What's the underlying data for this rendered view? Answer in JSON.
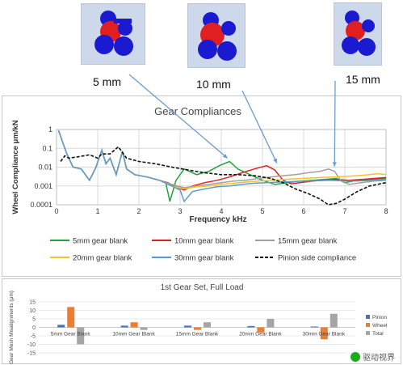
{
  "header": {
    "thumb_labels": [
      "5 mm",
      "10 mm",
      "15 mm"
    ]
  },
  "chart_data": [
    {
      "type": "line",
      "title": "Gear Compliances",
      "xlabel": "Frequency kHz",
      "ylabel": "Wheel Compliance μm/kN",
      "xlim": [
        0,
        8
      ],
      "ylim": [
        0.0001,
        1
      ],
      "yscale": "log",
      "x_ticks": [
        "0",
        "1",
        "2",
        "3",
        "4",
        "5",
        "6",
        "7",
        "8"
      ],
      "y_ticks": [
        "1",
        "0.1",
        "0.01",
        "0.001",
        "0.0001"
      ],
      "grid": true,
      "legend_position": "bottom",
      "series": [
        {
          "name": "5mm gear blank",
          "color": "#22a33a",
          "dash": false,
          "x": [
            0.05,
            0.15,
            0.25,
            0.4,
            0.6,
            0.8,
            0.95,
            1.1,
            1.2,
            1.3,
            1.45,
            1.6,
            1.7,
            1.9,
            2.2,
            2.5,
            2.65,
            2.75,
            2.9,
            3.1,
            3.4,
            3.7,
            3.95,
            4.2,
            4.4,
            4.7,
            5.0,
            5.3,
            5.6,
            5.9,
            6.2,
            6.5,
            6.8,
            7.0,
            7.3,
            7.6,
            8.0
          ],
          "y": [
            0.9,
            0.2,
            0.05,
            0.01,
            0.008,
            0.002,
            0.009,
            0.08,
            0.015,
            0.03,
            0.004,
            0.07,
            0.008,
            0.004,
            0.003,
            0.002,
            0.0015,
            0.00015,
            0.002,
            0.008,
            0.004,
            0.006,
            0.012,
            0.02,
            0.008,
            0.004,
            0.002,
            0.0012,
            0.0015,
            0.0018,
            0.002,
            0.0022,
            0.0025,
            0.0015,
            0.002,
            0.0022,
            0.0025
          ]
        },
        {
          "name": "10mm gear blank",
          "color": "#e0211c",
          "dash": false,
          "x": [
            0.05,
            0.15,
            0.25,
            0.4,
            0.6,
            0.8,
            0.95,
            1.1,
            1.2,
            1.3,
            1.45,
            1.6,
            1.7,
            1.9,
            2.2,
            2.5,
            2.7,
            2.9,
            3.1,
            3.3,
            3.6,
            3.9,
            4.2,
            4.5,
            4.8,
            5.1,
            5.3,
            5.5,
            5.7,
            5.9,
            6.2,
            6.5,
            6.8,
            7.1,
            7.4,
            7.7,
            8.0
          ],
          "y": [
            0.9,
            0.2,
            0.05,
            0.01,
            0.008,
            0.002,
            0.009,
            0.08,
            0.015,
            0.03,
            0.004,
            0.07,
            0.008,
            0.004,
            0.003,
            0.002,
            0.0015,
            0.0009,
            0.0006,
            0.001,
            0.0015,
            0.002,
            0.003,
            0.005,
            0.008,
            0.012,
            0.007,
            0.002,
            0.0013,
            0.0015,
            0.0018,
            0.002,
            0.0022,
            0.002,
            0.0022,
            0.0025,
            0.0028
          ]
        },
        {
          "name": "15mm gear blank",
          "color": "#a0a0a0",
          "dash": false,
          "x": [
            0.05,
            0.15,
            0.25,
            0.4,
            0.6,
            0.8,
            0.95,
            1.1,
            1.2,
            1.3,
            1.45,
            1.6,
            1.7,
            1.9,
            2.2,
            2.5,
            2.8,
            3.1,
            3.4,
            3.7,
            4.0,
            4.3,
            4.6,
            4.9,
            5.2,
            5.5,
            5.8,
            6.1,
            6.4,
            6.6,
            6.75,
            6.9,
            7.1,
            7.4,
            7.7,
            8.0
          ],
          "y": [
            0.9,
            0.2,
            0.05,
            0.01,
            0.008,
            0.002,
            0.009,
            0.08,
            0.015,
            0.03,
            0.004,
            0.07,
            0.008,
            0.004,
            0.003,
            0.002,
            0.0012,
            0.0008,
            0.001,
            0.0012,
            0.0015,
            0.0018,
            0.002,
            0.0025,
            0.003,
            0.0035,
            0.004,
            0.005,
            0.006,
            0.008,
            0.006,
            0.002,
            0.0012,
            0.0015,
            0.0018,
            0.002
          ]
        },
        {
          "name": "20mm gear blank",
          "color": "#f2c12e",
          "dash": false,
          "x": [
            0.05,
            0.15,
            0.25,
            0.4,
            0.6,
            0.8,
            0.95,
            1.1,
            1.2,
            1.3,
            1.45,
            1.6,
            1.7,
            1.9,
            2.2,
            2.5,
            2.8,
            3.1,
            3.4,
            3.7,
            4.0,
            4.3,
            4.6,
            4.9,
            5.2,
            5.5,
            5.8,
            6.1,
            6.4,
            6.7,
            7.0,
            7.3,
            7.6,
            7.8,
            8.0
          ],
          "y": [
            0.9,
            0.2,
            0.05,
            0.01,
            0.008,
            0.002,
            0.009,
            0.08,
            0.015,
            0.03,
            0.004,
            0.07,
            0.008,
            0.004,
            0.003,
            0.002,
            0.001,
            0.0007,
            0.0009,
            0.001,
            0.0012,
            0.0014,
            0.0016,
            0.0018,
            0.002,
            0.0022,
            0.0024,
            0.0026,
            0.0028,
            0.003,
            0.0032,
            0.0035,
            0.004,
            0.0045,
            0.004
          ]
        },
        {
          "name": "30mm gear blank",
          "color": "#5b9bd5",
          "dash": false,
          "x": [
            0.05,
            0.15,
            0.25,
            0.4,
            0.6,
            0.8,
            0.95,
            1.1,
            1.2,
            1.3,
            1.45,
            1.6,
            1.7,
            1.9,
            2.2,
            2.5,
            2.8,
            3.0,
            3.1,
            3.3,
            3.6,
            3.9,
            4.2,
            4.5,
            4.8,
            5.1,
            5.4,
            5.7,
            6.0,
            6.3,
            6.6,
            6.9,
            7.2,
            7.5,
            7.8,
            8.0
          ],
          "y": [
            0.9,
            0.2,
            0.05,
            0.01,
            0.008,
            0.002,
            0.009,
            0.08,
            0.015,
            0.03,
            0.004,
            0.07,
            0.008,
            0.004,
            0.003,
            0.002,
            0.001,
            0.0006,
            0.00015,
            0.0005,
            0.0007,
            0.0009,
            0.001,
            0.0012,
            0.0014,
            0.0015,
            0.0016,
            0.0017,
            0.0018,
            0.0019,
            0.002,
            0.0019,
            0.0018,
            0.0019,
            0.002,
            0.0022
          ]
        },
        {
          "name": "Pinion side compliance",
          "color": "#111111",
          "dash": true,
          "x": [
            0.1,
            0.2,
            0.3,
            0.5,
            0.8,
            1.0,
            1.1,
            1.3,
            1.5,
            1.7,
            2.0,
            2.4,
            2.8,
            3.2,
            3.6,
            4.0,
            4.4,
            4.8,
            5.0,
            5.2,
            5.5,
            5.8,
            6.1,
            6.4,
            6.6,
            6.8,
            7.0,
            7.3,
            7.6,
            8.0
          ],
          "y": [
            0.02,
            0.04,
            0.03,
            0.035,
            0.045,
            0.03,
            0.05,
            0.05,
            0.12,
            0.03,
            0.02,
            0.015,
            0.01,
            0.007,
            0.005,
            0.004,
            0.004,
            0.0035,
            0.003,
            0.0025,
            0.0015,
            0.0007,
            0.0004,
            0.0002,
            0.0001,
            0.00012,
            0.0002,
            0.0005,
            0.001,
            0.0015
          ]
        }
      ]
    },
    {
      "type": "bar",
      "title": "1st Gear Set, Full Load",
      "ylabel": "Gear Mesh Misalignments (μm)",
      "ylim": [
        -15,
        15
      ],
      "y_ticks": [
        "15",
        "10",
        "5",
        "0",
        "-5",
        "-10",
        "-15"
      ],
      "categories": [
        "5mm Gear Blank",
        "10mm Gear Blank",
        "15mm Gear Blank",
        "20mm Gear Blank",
        "30mm Gear Blank"
      ],
      "legend_position": "right",
      "series": [
        {
          "name": "Pinion",
          "color": "#4472c4",
          "values": [
            1.5,
            1,
            1,
            0.8,
            0.5
          ]
        },
        {
          "name": "Wheel",
          "color": "#ed7d31",
          "values": [
            12,
            3,
            -1.5,
            -3,
            -7
          ]
        },
        {
          "name": "Total",
          "color": "#a5a5a5",
          "values": [
            -10,
            -1.5,
            3,
            5,
            8
          ]
        }
      ]
    }
  ],
  "watermark": {
    "text": "驱动视界"
  }
}
